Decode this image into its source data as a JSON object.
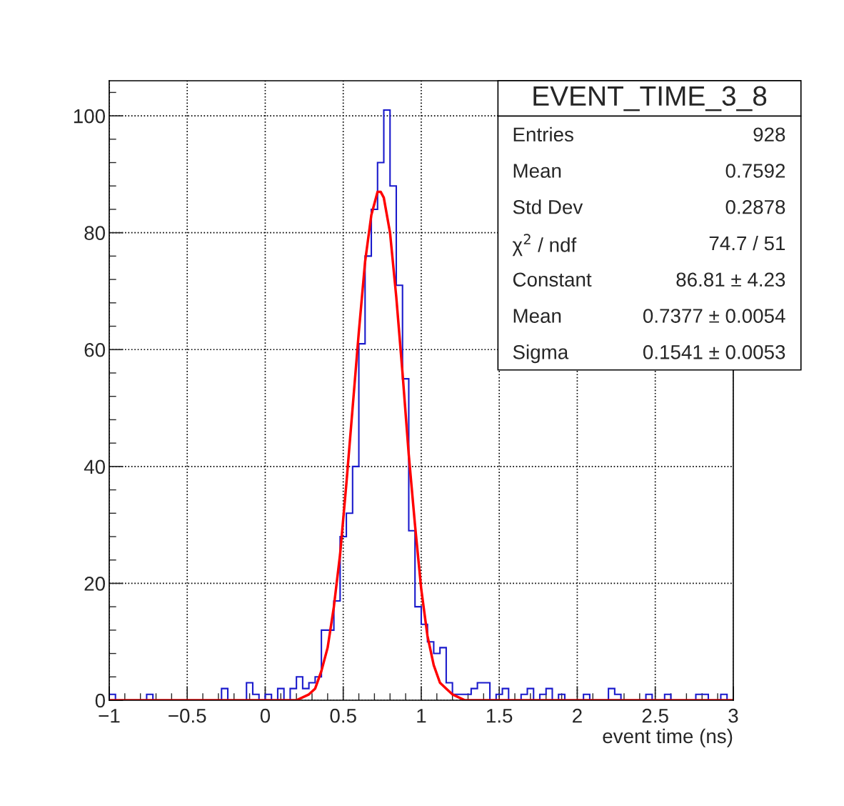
{
  "chart_data": {
    "type": "histogram",
    "title": "EVENT_TIME_3_8",
    "xlabel": "event time (ns)",
    "series": [
      {
        "type": "histogram",
        "color": "#1a1acc",
        "bins": [
          -1.0,
          -0.96,
          -0.92,
          -0.88,
          -0.84,
          -0.8,
          -0.76,
          -0.72,
          -0.68,
          -0.64,
          -0.6,
          -0.56,
          -0.52,
          -0.48,
          -0.44,
          -0.4,
          -0.36,
          -0.32,
          -0.28,
          -0.24,
          -0.2,
          -0.16,
          -0.12,
          -0.08,
          -0.04,
          0.0,
          0.04,
          0.08,
          0.12,
          0.16,
          0.2,
          0.24,
          0.28,
          0.32,
          0.36,
          0.4,
          0.44,
          0.48,
          0.52,
          0.56,
          0.6,
          0.64,
          0.68,
          0.72,
          0.76,
          0.8,
          0.84,
          0.88,
          0.92,
          0.96,
          1.0,
          1.04,
          1.08,
          1.12,
          1.16,
          1.2,
          1.24,
          1.28,
          1.32,
          1.36,
          1.4,
          1.44,
          1.48,
          1.52,
          1.56,
          1.6,
          1.64,
          1.68,
          1.72,
          1.76,
          1.8,
          1.84,
          1.88,
          1.92,
          1.96,
          2.0,
          2.04,
          2.08,
          2.12,
          2.16,
          2.2,
          2.24,
          2.28,
          2.32,
          2.36,
          2.4,
          2.44,
          2.48,
          2.52,
          2.56,
          2.6,
          2.64,
          2.68,
          2.72,
          2.76,
          2.8,
          2.84,
          2.88,
          2.92,
          2.96,
          3.0
        ],
        "values": [
          1,
          0,
          0,
          0,
          0,
          0,
          1,
          0,
          0,
          0,
          0,
          0,
          0,
          0,
          0,
          0,
          0,
          0,
          2,
          0,
          0,
          0,
          3,
          1,
          0,
          1,
          0,
          2,
          0,
          2,
          4,
          2,
          3,
          4,
          12,
          12,
          17,
          28,
          32,
          40,
          61,
          76,
          84,
          92,
          101,
          88,
          71,
          55,
          29,
          16,
          13,
          10,
          8,
          9,
          3,
          1,
          1,
          1,
          2,
          3,
          3,
          0,
          1,
          2,
          0,
          0,
          1,
          2,
          0,
          1,
          2,
          0,
          1,
          0,
          0,
          0,
          1,
          0,
          0,
          0,
          2,
          1,
          0,
          0,
          0,
          0,
          1,
          0,
          0,
          1,
          0,
          0,
          0,
          0,
          1,
          1,
          0,
          0,
          1,
          0
        ]
      },
      {
        "type": "line",
        "color": "#ff0000",
        "x": [
          -1,
          0.2,
          0.28,
          0.32,
          0.36,
          0.4,
          0.44,
          0.48,
          0.52,
          0.56,
          0.6,
          0.64,
          0.68,
          0.72,
          0.74,
          0.76,
          0.8,
          0.84,
          0.88,
          0.92,
          0.96,
          1.0,
          1.04,
          1.08,
          1.12,
          1.16,
          1.2,
          1.28,
          1.4,
          3
        ],
        "values": [
          0,
          0,
          1,
          2,
          5,
          9,
          16,
          25,
          37,
          50,
          63,
          75,
          83,
          87,
          87,
          86,
          80,
          69,
          56,
          42,
          30,
          19,
          11,
          6,
          3,
          2,
          1,
          0,
          0,
          0
        ]
      }
    ],
    "xlim": [
      -1,
      3
    ],
    "ylim": [
      0,
      106
    ],
    "xticks": [
      {
        "value": -1,
        "label": "−1"
      },
      {
        "value": -0.5,
        "label": "−0.5"
      },
      0,
      0.5,
      1,
      1.5,
      2,
      2.5,
      3
    ],
    "yticks": [
      0,
      20,
      40,
      60,
      80,
      100
    ],
    "grid": true,
    "legend": false,
    "annotations": [
      "Entries",
      "928",
      "Mean",
      "0.7592",
      "Std Dev",
      "0.2878",
      "χ$^{2}$ / ndf",
      "74.7 / 51",
      "Constant",
      "86.81 ± 4.23",
      "Mean",
      "0.7377 ± 0.0054",
      "Sigma",
      "0.1541 ± 0.0053"
    ]
  }
}
